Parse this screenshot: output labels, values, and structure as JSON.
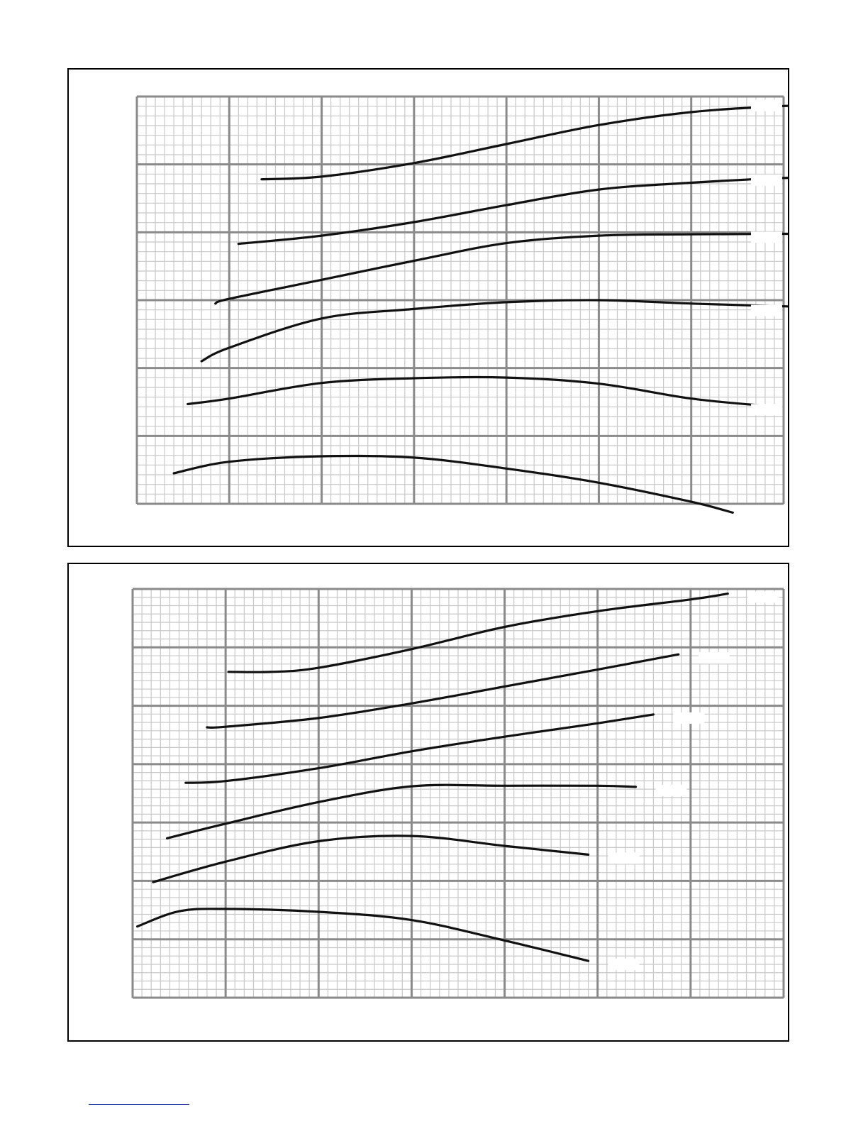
{
  "chart_data": [
    {
      "type": "line",
      "grid": true,
      "xlim": [
        0,
        7
      ],
      "ylim": [
        0,
        6
      ],
      "major_divisions": {
        "x": 7,
        "y": 6
      },
      "minor_per_major": {
        "x": 10,
        "y": 7
      },
      "series_color": "#111111",
      "grid_major_color": "#8a8a8a",
      "grid_minor_color": "#c8c8c8",
      "series": [
        {
          "x": [
            0.4,
            1.0,
            2.0,
            3.0,
            4.0,
            5.0,
            6.0,
            6.45
          ],
          "y": [
            0.45,
            0.62,
            0.7,
            0.68,
            0.52,
            0.31,
            0.03,
            -0.13
          ],
          "end_label_box": true
        },
        {
          "x": [
            0.55,
            1.0,
            2.0,
            3.0,
            4.0,
            5.0,
            6.0,
            6.83
          ],
          "y": [
            1.47,
            1.55,
            1.78,
            1.85,
            1.86,
            1.77,
            1.55,
            1.44
          ],
          "end_label_box": true
        },
        {
          "x": [
            0.7,
            1.0,
            2.0,
            3.0,
            4.0,
            5.0,
            6.0,
            7.25
          ],
          "y": [
            2.1,
            2.3,
            2.73,
            2.87,
            2.97,
            3.0,
            2.95,
            2.9
          ],
          "end_label_box": true
        },
        {
          "x": [
            0.85,
            1.0,
            2.0,
            3.0,
            4.0,
            5.0,
            6.0,
            7.6
          ],
          "y": [
            2.95,
            3.02,
            3.3,
            3.58,
            3.84,
            3.95,
            3.97,
            3.98
          ],
          "end_label_box": true
        },
        {
          "x": [
            1.1,
            2.0,
            3.0,
            4.0,
            5.0,
            6.0,
            7.0,
            7.92
          ],
          "y": [
            3.83,
            3.95,
            4.15,
            4.4,
            4.63,
            4.73,
            4.8,
            4.82
          ],
          "end_label_box": true
        },
        {
          "x": [
            1.35,
            2.0,
            3.0,
            4.0,
            5.0,
            6.0,
            7.0,
            8.22
          ],
          "y": [
            4.78,
            4.82,
            5.02,
            5.3,
            5.58,
            5.77,
            5.86,
            5.92
          ],
          "end_label_box": true
        }
      ]
    },
    {
      "type": "line",
      "grid": true,
      "xlim": [
        0,
        7
      ],
      "ylim": [
        0,
        7
      ],
      "major_divisions": {
        "x": 7,
        "y": 7
      },
      "minor_per_major": {
        "x": 10,
        "y": 7
      },
      "series_color": "#111111",
      "grid_major_color": "#8a8a8a",
      "grid_minor_color": "#c8c8c8",
      "series": [
        {
          "x": [
            0.05,
            0.5,
            1.0,
            2.0,
            3.0,
            4.0,
            4.9
          ],
          "y": [
            1.22,
            1.48,
            1.52,
            1.47,
            1.33,
            0.98,
            0.63
          ],
          "end_label_box": true
        },
        {
          "x": [
            0.22,
            1.0,
            2.0,
            3.0,
            4.0,
            4.9
          ],
          "y": [
            1.98,
            2.33,
            2.68,
            2.77,
            2.6,
            2.45
          ],
          "end_label_box": true
        },
        {
          "x": [
            0.37,
            1.0,
            2.0,
            3.0,
            4.0,
            5.0,
            5.41
          ],
          "y": [
            2.73,
            2.98,
            3.35,
            3.62,
            3.63,
            3.63,
            3.61
          ],
          "end_label_box": true
        },
        {
          "x": [
            0.57,
            1.0,
            2.0,
            3.0,
            4.0,
            5.0,
            5.6
          ],
          "y": [
            3.68,
            3.71,
            3.93,
            4.22,
            4.47,
            4.7,
            4.85
          ],
          "end_label_box": true
        },
        {
          "x": [
            0.8,
            1.0,
            2.0,
            3.0,
            4.0,
            5.0,
            5.87
          ],
          "y": [
            4.63,
            4.64,
            4.79,
            5.04,
            5.33,
            5.62,
            5.88
          ],
          "end_label_box": true
        },
        {
          "x": [
            1.03,
            1.5,
            2.0,
            3.0,
            4.0,
            5.0,
            6.0,
            6.4
          ],
          "y": [
            5.58,
            5.58,
            5.65,
            5.97,
            6.35,
            6.62,
            6.82,
            6.92
          ],
          "end_label_box": true
        }
      ]
    }
  ]
}
